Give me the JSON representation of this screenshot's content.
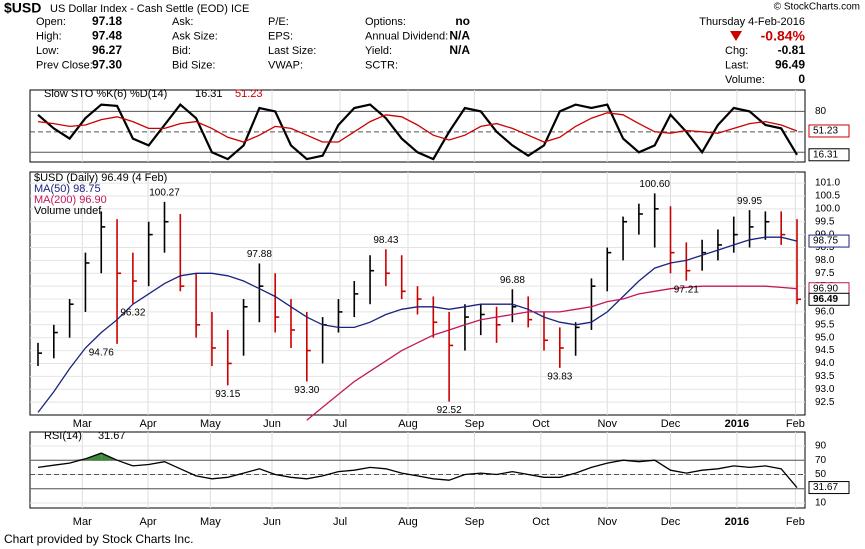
{
  "header": {
    "title": "$USD",
    "subtitle": "US Dollar Index - Cash Settle (EOD) ICE",
    "brand": "© StockCharts.com",
    "date": "Thursday  4-Feb-2016",
    "change": "-0.84%",
    "groups": [
      [
        {
          "label": "Open:",
          "value": "97.18"
        },
        {
          "label": "High:",
          "value": "97.48"
        },
        {
          "label": "Low:",
          "value": "96.27"
        },
        {
          "label": "Prev Close:",
          "value": "97.30"
        }
      ],
      [
        {
          "label": "Ask:"
        },
        {
          "label": "Ask Size:"
        },
        {
          "label": "Bid:"
        },
        {
          "label": "Bid Size:"
        }
      ],
      [
        {
          "label": "P/E:"
        },
        {
          "label": "EPS:"
        },
        {
          "label": "Last Size:"
        },
        {
          "label": "VWAP:"
        }
      ],
      [
        {
          "label": "Options:",
          "value": "no"
        },
        {
          "label": "Annual Dividend:",
          "value": "N/A"
        },
        {
          "label": "Yield:",
          "value": "N/A"
        },
        {
          "label": "SCTR:"
        }
      ],
      [
        {
          "label": "Chg:",
          "value": "-0.81"
        },
        {
          "label": "Last:",
          "value": "96.49"
        },
        {
          "label": "Volume:",
          "value": "0"
        }
      ]
    ],
    "footer": "Chart provided by Stock Charts Inc."
  },
  "chart_data": [
    {
      "type": "line",
      "title": "Slow STO %K(6) %D(14)",
      "ylim": [
        5.7,
        111.4
      ],
      "yticks": [
        80
      ],
      "levels": [
        20,
        50,
        80
      ],
      "xlim": [
        0,
        48
      ],
      "series": [
        {
          "name": "%K",
          "color": "#000000",
          "value_labels": [
            null,
            null,
            null,
            null,
            null,
            null,
            null,
            null,
            null,
            null,
            null,
            null,
            null,
            null,
            null,
            null,
            null,
            null,
            null,
            null,
            null,
            null,
            null,
            null,
            null,
            null,
            null,
            null,
            null,
            null,
            null,
            null,
            null,
            null,
            null,
            null,
            null,
            null,
            null,
            null,
            null,
            null,
            null,
            null,
            null,
            null,
            null,
            null,
            "16.31"
          ],
          "values": [
            75,
            55,
            40,
            70,
            90,
            88,
            40,
            30,
            60,
            90,
            70,
            20,
            10,
            30,
            85,
            80,
            30,
            10,
            15,
            60,
            85,
            90,
            70,
            40,
            20,
            10,
            50,
            85,
            80,
            50,
            30,
            15,
            30,
            80,
            90,
            85,
            90,
            40,
            20,
            30,
            75,
            50,
            20,
            60,
            85,
            80,
            60,
            55,
            16.31
          ]
        },
        {
          "name": "%D",
          "color": "#cc0000",
          "value_labels": [
            null,
            null,
            null,
            null,
            null,
            null,
            null,
            null,
            null,
            null,
            null,
            null,
            null,
            null,
            null,
            null,
            null,
            null,
            null,
            null,
            null,
            null,
            null,
            null,
            null,
            null,
            null,
            null,
            null,
            null,
            null,
            null,
            null,
            null,
            null,
            null,
            null,
            null,
            null,
            null,
            null,
            null,
            null,
            null,
            null,
            null,
            null,
            null,
            "51.23"
          ],
          "values": [
            65,
            62,
            58,
            60,
            68,
            72,
            65,
            55,
            55,
            62,
            65,
            55,
            42,
            35,
            45,
            58,
            55,
            45,
            35,
            35,
            50,
            65,
            75,
            72,
            60,
            45,
            38,
            45,
            58,
            62,
            55,
            45,
            35,
            42,
            58,
            70,
            78,
            75,
            62,
            50,
            48,
            52,
            50,
            48,
            55,
            62,
            65,
            60,
            51.23
          ]
        }
      ]
    },
    {
      "type": "ohlc",
      "ylim": [
        92.0,
        101.43
      ],
      "xlim": [
        0,
        48
      ],
      "yticks": [
        92.5,
        {
          "value": 93,
          "label": "93.0"
        },
        93.5,
        {
          "value": 94,
          "label": "94.0"
        },
        94.5,
        {
          "value": 95,
          "label": "95.0"
        },
        95.5,
        {
          "value": 96,
          "label": "96.0"
        },
        96.5,
        {
          "value": 97,
          "label": "97.0"
        },
        97.5,
        {
          "value": 98,
          "label": "98.0"
        },
        98.5,
        {
          "value": 99,
          "label": "99.0"
        },
        99.5,
        {
          "value": 100,
          "label": "100.0"
        },
        100.5,
        {
          "value": 101,
          "label": "101.0"
        }
      ],
      "xticks": [
        {
          "value": 2.8,
          "label": "Mar"
        },
        {
          "value": 6.96,
          "label": "Apr"
        },
        {
          "value": 10.9,
          "label": "May"
        },
        {
          "value": 14.8,
          "label": "Jun"
        },
        {
          "value": 19.1,
          "label": "Jul"
        },
        {
          "value": 23.4,
          "label": "Aug"
        },
        {
          "value": 27.6,
          "label": "Sep"
        },
        {
          "value": 31.8,
          "label": "Oct"
        },
        {
          "value": 36,
          "label": "Nov"
        },
        {
          "value": 40,
          "label": "Dec"
        },
        {
          "value": 44.2,
          "label": "2016"
        },
        {
          "value": 47.9,
          "label": "Feb"
        }
      ],
      "series": [
        {
          "name": "$USD (Daily) 96.49 (4 Feb)",
          "up_color": "#000000",
          "down_color": "#cc0000",
          "high": [
            94.8,
            95.5,
            96.5,
            98.3,
            99.9,
            99.6,
            98.3,
            99.5,
            100.27,
            99.8,
            97.5,
            96.0,
            95.3,
            96.5,
            97.88,
            97.5,
            96.5,
            96.0,
            95.8,
            96.5,
            97.2,
            98.2,
            98.43,
            98.2,
            97.0,
            96.6,
            96.0,
            96.3,
            96.3,
            96.2,
            96.88,
            96.6,
            96.0,
            95.4,
            95.6,
            97.3,
            98.5,
            99.7,
            100.2,
            100.6,
            100.1,
            98.7,
            98.8,
            99.2,
            99.7,
            99.95,
            99.9,
            99.9,
            99.6
          ],
          "low": [
            93.9,
            94.2,
            95.0,
            96.0,
            97.5,
            94.76,
            96.32,
            97.0,
            98.3,
            96.8,
            95.0,
            93.9,
            93.15,
            94.3,
            95.6,
            95.2,
            94.6,
            93.3,
            94.0,
            95.2,
            95.8,
            96.3,
            97.0,
            96.5,
            95.9,
            95.0,
            92.52,
            94.5,
            95.1,
            94.8,
            95.6,
            95.4,
            94.5,
            93.83,
            94.3,
            95.3,
            96.8,
            98.0,
            99.0,
            98.5,
            97.5,
            97.21,
            97.6,
            98.0,
            98.3,
            98.5,
            98.8,
            98.6,
            96.3
          ],
          "close": [
            94.4,
            95.2,
            96.3,
            97.9,
            99.3,
            97.5,
            97.2,
            99.0,
            99.5,
            97.0,
            95.5,
            94.6,
            94.0,
            96.2,
            97.0,
            95.8,
            95.3,
            94.5,
            95.5,
            96.0,
            96.7,
            97.6,
            97.5,
            96.8,
            96.5,
            95.6,
            94.7,
            95.8,
            95.9,
            95.5,
            96.2,
            95.7,
            94.9,
            94.6,
            95.4,
            97.0,
            98.3,
            99.5,
            99.8,
            100.0,
            98.3,
            97.6,
            98.3,
            98.6,
            99.0,
            99.3,
            99.5,
            99.0,
            96.49
          ]
        },
        {
          "name": "MA(50) 98.75",
          "color": "#1a237e",
          "values": [
            92.1,
            92.9,
            93.8,
            94.6,
            95.2,
            95.7,
            96.3,
            96.7,
            97.1,
            97.4,
            97.5,
            97.5,
            97.4,
            97.2,
            96.9,
            96.6,
            96.2,
            95.8,
            95.5,
            95.4,
            95.4,
            95.6,
            95.9,
            96.1,
            96.2,
            96.2,
            96.1,
            96.2,
            96.3,
            96.3,
            96.3,
            96.1,
            95.8,
            95.6,
            95.5,
            95.6,
            96.0,
            96.6,
            97.2,
            97.7,
            97.9,
            98.0,
            98.2,
            98.4,
            98.6,
            98.8,
            98.9,
            98.9,
            98.75
          ]
        },
        {
          "name": "MA(200) 96.90",
          "color": "#c2185b",
          "value_labels": [
            null,
            null,
            null,
            null,
            null,
            null,
            null,
            null,
            null,
            null,
            null,
            null,
            null,
            null,
            null,
            null,
            null,
            null,
            null,
            null,
            null,
            null,
            null,
            null,
            null,
            null,
            null,
            null,
            null,
            null,
            null,
            null,
            null,
            null,
            null,
            null,
            null,
            null,
            null,
            null,
            null,
            null,
            null,
            null,
            null,
            null,
            null,
            null,
            "96.90"
          ],
          "values": [
            null,
            null,
            null,
            null,
            null,
            null,
            null,
            null,
            null,
            null,
            null,
            null,
            null,
            null,
            null,
            null,
            null,
            91.8,
            92.3,
            92.8,
            93.3,
            93.7,
            94.1,
            94.5,
            94.8,
            95.1,
            95.3,
            95.5,
            95.7,
            95.8,
            95.9,
            96.0,
            96.0,
            96.0,
            96.1,
            96.2,
            96.4,
            96.5,
            96.7,
            96.8,
            96.9,
            96.95,
            97.0,
            97.0,
            97.0,
            97.0,
            97.0,
            96.95,
            96.9
          ]
        },
        {
          "name": "Volume undef"
        }
      ],
      "annotations": [
        {
          "x": 4,
          "y": 94.76,
          "label": "94.76"
        },
        {
          "x": 6,
          "y": 96.32,
          "label": "96.32"
        },
        {
          "x": 8,
          "y": 100.27,
          "label": "100.27"
        },
        {
          "x": 12,
          "y": 93.15,
          "label": "93.15"
        },
        {
          "x": 14,
          "y": 97.88,
          "label": "97.88"
        },
        {
          "x": 17,
          "y": 93.3,
          "label": "93.30"
        },
        {
          "x": 22,
          "y": 98.43,
          "label": "98.43"
        },
        {
          "x": 26,
          "y": 92.52,
          "label": "92.52"
        },
        {
          "x": 30,
          "y": 96.88,
          "label": "96.88"
        },
        {
          "x": 33,
          "y": 93.83,
          "label": "93.83"
        },
        {
          "x": 39,
          "y": 100.6,
          "label": "100.60"
        },
        {
          "x": 41,
          "y": 97.21,
          "label": "97.21"
        },
        {
          "x": 45,
          "y": 99.95,
          "label": "99.95"
        }
      ]
    },
    {
      "type": "line",
      "title": "RSI(14)",
      "ylim": [
        3,
        109.6
      ],
      "xlim": [
        0,
        48
      ],
      "yticks": [
        10,
        30,
        50,
        70,
        90
      ],
      "levels": [
        30,
        50,
        70
      ],
      "fill_above": 70,
      "fill_color": "#3a8a3a",
      "series": [
        {
          "name": "RSI",
          "color": "#000000",
          "value_labels": [
            null,
            null,
            null,
            null,
            null,
            null,
            null,
            null,
            null,
            null,
            null,
            null,
            null,
            null,
            null,
            null,
            null,
            null,
            null,
            null,
            null,
            null,
            null,
            null,
            null,
            null,
            null,
            null,
            null,
            null,
            null,
            null,
            null,
            null,
            null,
            null,
            null,
            null,
            null,
            null,
            null,
            null,
            null,
            null,
            null,
            null,
            null,
            null,
            "31.67"
          ],
          "values": [
            60,
            63,
            66,
            72,
            80,
            70,
            62,
            64,
            68,
            58,
            48,
            44,
            46,
            52,
            58,
            50,
            46,
            44,
            48,
            54,
            56,
            60,
            58,
            52,
            48,
            44,
            42,
            50,
            52,
            50,
            54,
            50,
            46,
            46,
            52,
            60,
            66,
            70,
            68,
            70,
            56,
            52,
            56,
            58,
            62,
            60,
            62,
            58,
            31.67
          ]
        }
      ]
    }
  ]
}
